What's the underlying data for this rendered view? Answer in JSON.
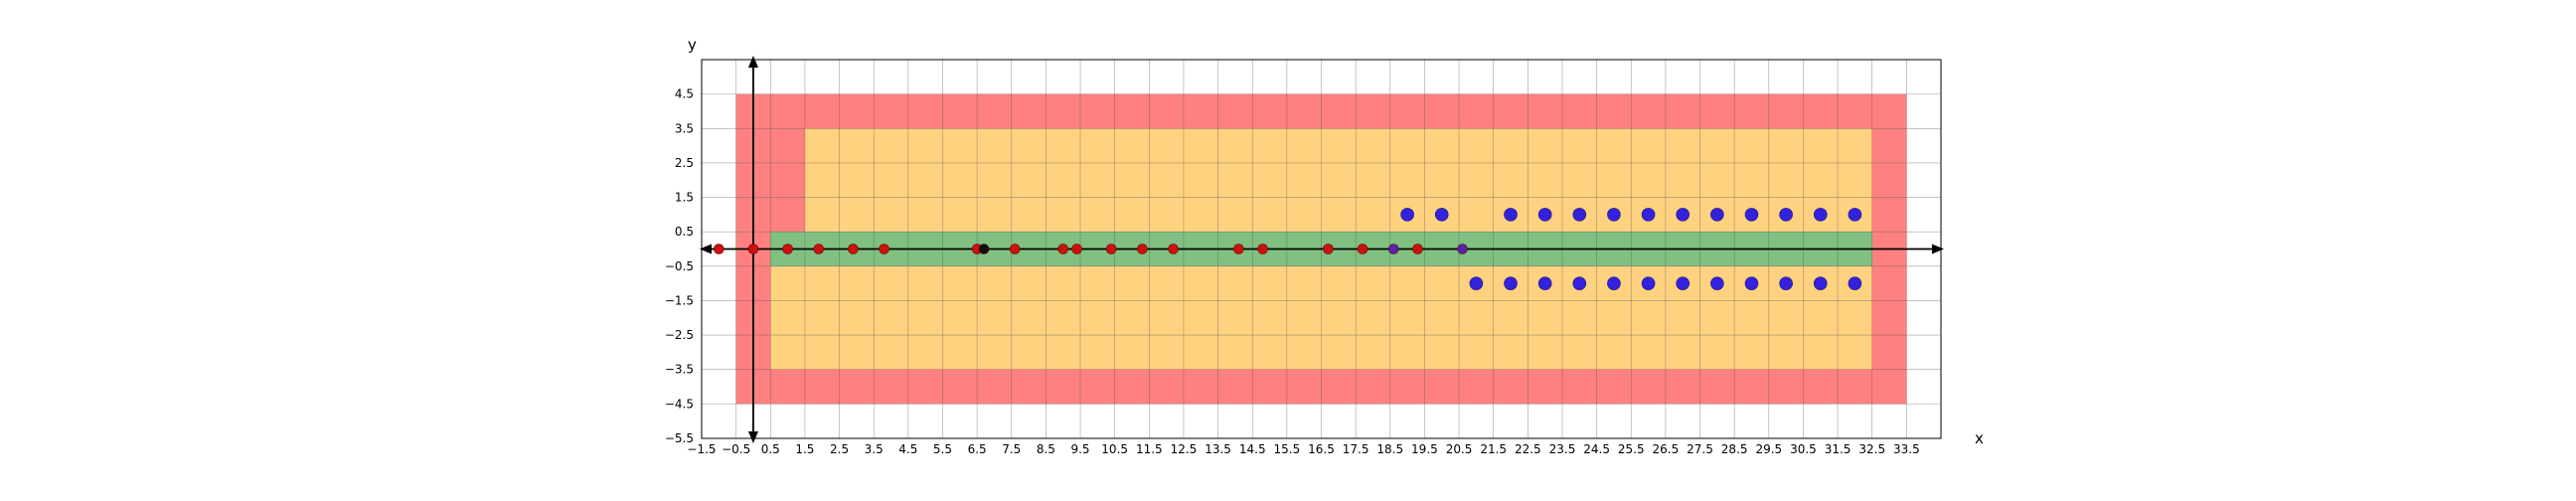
{
  "chart_data": {
    "type": "scatter",
    "title": "",
    "xlabel": "x",
    "ylabel": "y",
    "xlim": [
      -1.5,
      34.5
    ],
    "ylim": [
      -5.5,
      5.5
    ],
    "grid": true,
    "xticks": [
      -1.5,
      -0.5,
      0.5,
      1.5,
      2.5,
      3.5,
      4.5,
      5.5,
      6.5,
      7.5,
      8.5,
      9.5,
      10.5,
      11.5,
      12.5,
      13.5,
      14.5,
      15.5,
      16.5,
      17.5,
      18.5,
      19.5,
      20.5,
      21.5,
      22.5,
      23.5,
      24.5,
      25.5,
      26.5,
      27.5,
      28.5,
      29.5,
      30.5,
      31.5,
      32.5,
      33.5
    ],
    "xtick_labels": [
      "−1.5",
      "−0.5",
      "0.5",
      "1.5",
      "2.5",
      "3.5",
      "4.5",
      "5.5",
      "6.5",
      "7.5",
      "8.5",
      "9.5",
      "10.5",
      "11.5",
      "12.5",
      "13.5",
      "14.5",
      "15.5",
      "16.5",
      "17.5",
      "18.5",
      "19.5",
      "20.5",
      "21.5",
      "22.5",
      "23.5",
      "24.5",
      "25.5",
      "26.5",
      "27.5",
      "28.5",
      "29.5",
      "30.5",
      "31.5",
      "32.5",
      "33.5"
    ],
    "yticks": [
      4.5,
      3.5,
      2.5,
      1.5,
      0.5,
      -0.5,
      -1.5,
      -2.5,
      -3.5,
      -4.5,
      -5.5
    ],
    "ytick_labels": [
      "4.5",
      "3.5",
      "2.5",
      "1.5",
      "0.5",
      "−0.5",
      "−1.5",
      "−2.5",
      "−3.5",
      "−4.5",
      "−5.5"
    ],
    "regions": [
      {
        "kind": "outer",
        "color": "#ff8080",
        "x": [
          -0.5,
          33.5
        ],
        "y": [
          -4.5,
          4.5
        ]
      },
      {
        "kind": "upper-inner",
        "color": "#ffd280",
        "x": [
          1.5,
          32.5
        ],
        "y": [
          0.5,
          3.5
        ]
      },
      {
        "kind": "lower-inner",
        "color": "#ffd280",
        "x": [
          0.5,
          32.5
        ],
        "y": [
          -3.5,
          -0.5
        ]
      },
      {
        "kind": "lane",
        "color": "#80c080",
        "x": [
          -0.5,
          32.5
        ],
        "y": [
          -0.5,
          0.5
        ]
      },
      {
        "kind": "lane-start",
        "color": "#ff8080",
        "x": [
          -0.5,
          0.5
        ],
        "y": [
          -0.5,
          0.5
        ]
      }
    ],
    "series": [
      {
        "kind": "red-small",
        "color": "#cc1111",
        "points": [
          [
            -1,
            0
          ],
          [
            0,
            0
          ],
          [
            1,
            0
          ],
          [
            1.9,
            0
          ],
          [
            2.9,
            0
          ],
          [
            3.8,
            0
          ],
          [
            6.5,
            0
          ],
          [
            7.6,
            0
          ],
          [
            9,
            0
          ],
          [
            9.4,
            0
          ],
          [
            10.4,
            0
          ],
          [
            11.3,
            0
          ],
          [
            12.2,
            0
          ],
          [
            14.1,
            0
          ],
          [
            14.8,
            0
          ],
          [
            16.7,
            0
          ],
          [
            17.7,
            0
          ],
          [
            19.3,
            0
          ]
        ]
      },
      {
        "kind": "black-small",
        "color": "#111111",
        "points": [
          [
            6.7,
            0
          ]
        ]
      },
      {
        "kind": "purple-small",
        "color": "#5522aa",
        "points": [
          [
            18.6,
            0
          ],
          [
            20.6,
            0
          ]
        ]
      },
      {
        "kind": "blue-large",
        "color": "#3322dd",
        "points": [
          [
            19,
            1
          ],
          [
            20,
            1
          ],
          [
            22,
            1
          ],
          [
            23,
            1
          ],
          [
            24,
            1
          ],
          [
            25,
            1
          ],
          [
            26,
            1
          ],
          [
            27,
            1
          ],
          [
            28,
            1
          ],
          [
            29,
            1
          ],
          [
            30,
            1
          ],
          [
            31,
            1
          ],
          [
            32,
            1
          ],
          [
            21,
            -1
          ],
          [
            22,
            -1
          ],
          [
            23,
            -1
          ],
          [
            24,
            -1
          ],
          [
            25,
            -1
          ],
          [
            26,
            -1
          ],
          [
            27,
            -1
          ],
          [
            28,
            -1
          ],
          [
            29,
            -1
          ],
          [
            30,
            -1
          ],
          [
            31,
            -1
          ],
          [
            32,
            -1
          ]
        ]
      }
    ]
  }
}
